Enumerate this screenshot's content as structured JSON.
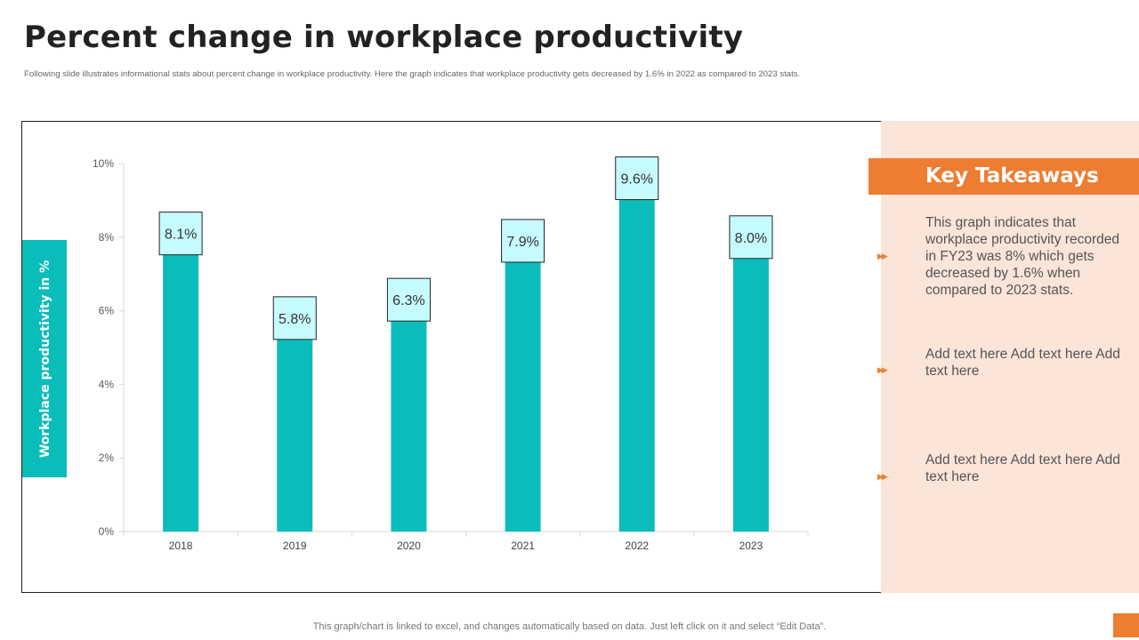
{
  "page": {
    "title": "Percent change in workplace productivity",
    "subtitle": "Following slide illustrates informational stats about percent change in  workplace productivity. Here the graph indicates that workplace productivity gets decreased by 1.6% in 2022 as compared to 2023 stats.",
    "footer": "This graph/chart is linked to excel,  and changes automatically based on data. Just left click on it and select “Edit Data”."
  },
  "colors": {
    "bar": "#0bbdba",
    "label_fill": "#c6fbff",
    "accent": "#ed7d31",
    "panel": "#fbe4d8"
  },
  "takeaways": {
    "title": "Key Takeaways",
    "items": [
      "This graph indicates that workplace productivity recorded in FY23 was 8% which gets decreased by 1.6% when compared to 2023 stats.",
      "Add text here Add text here Add text here",
      "Add text here Add text here Add text here"
    ],
    "bullet_icon": "double-chevron-right-icon"
  },
  "chart_data": {
    "type": "bar",
    "categories": [
      "2018",
      "2019",
      "2020",
      "2021",
      "2022",
      "2023"
    ],
    "values": [
      8.1,
      5.8,
      6.3,
      7.9,
      9.6,
      8.0
    ],
    "data_labels": [
      "8.1%",
      "5.8%",
      "6.3%",
      "7.9%",
      "9.6%",
      "8.0%"
    ],
    "ylabel": "Workplace productivity in %",
    "xlabel": "",
    "ylim": [
      0,
      10
    ],
    "yticks": [
      0,
      2,
      4,
      6,
      8,
      10
    ],
    "ytick_labels": [
      "0%",
      "2%",
      "4%",
      "6%",
      "8%",
      "10%"
    ],
    "grid": false,
    "legend": "none"
  }
}
